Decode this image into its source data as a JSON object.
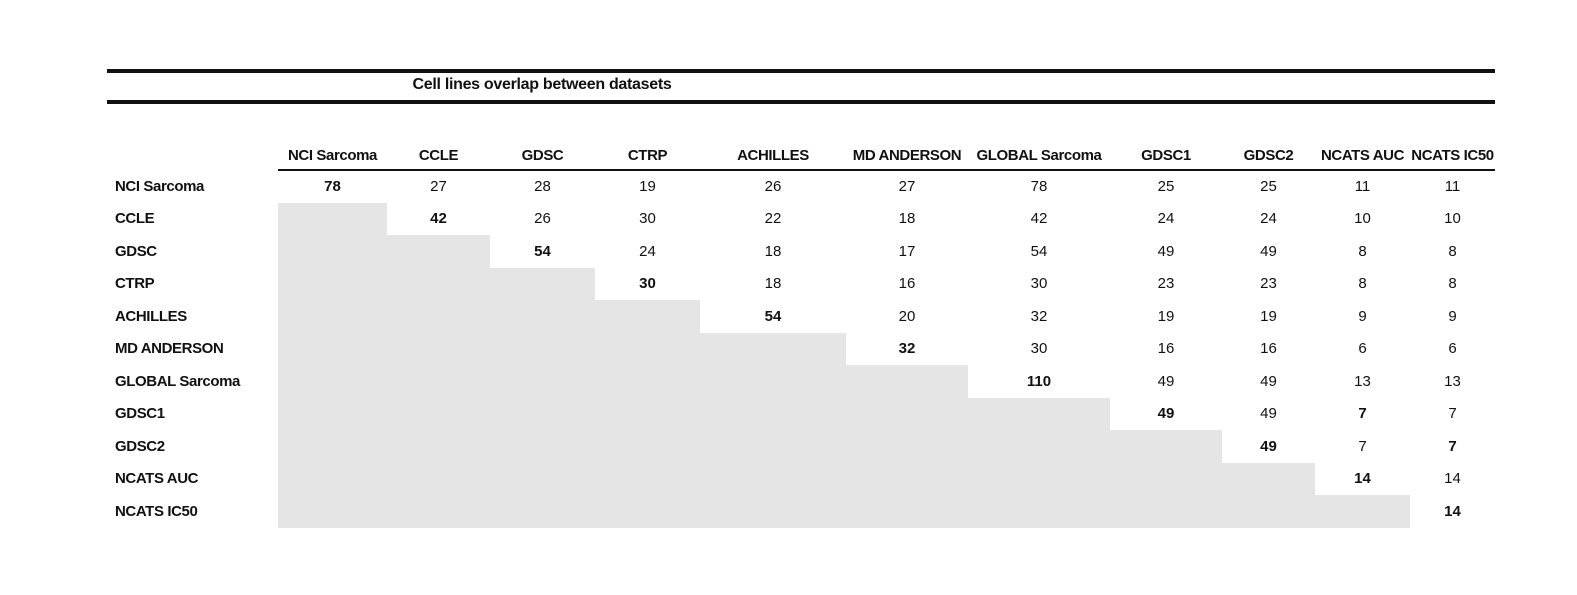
{
  "title": "Cell lines overlap between datasets",
  "colors": {
    "empty_cell_shade": "#e5e5e5",
    "text": "#111111",
    "rule": "#111111",
    "background": "#ffffff"
  },
  "table": {
    "corner_label": "",
    "columns": [
      "NCI Sarcoma",
      "CCLE",
      "GDSC",
      "CTRP",
      "ACHILLES",
      "MD ANDERSON",
      "GLOBAL Sarcoma",
      "GDSC1",
      "GDSC2",
      "NCATS AUC",
      "NCATS IC50"
    ],
    "rows": [
      {
        "label": "NCI Sarcoma",
        "values": [
          78,
          27,
          28,
          19,
          26,
          27,
          78,
          25,
          25,
          11,
          11
        ]
      },
      {
        "label": "CCLE",
        "values": [
          null,
          42,
          26,
          30,
          22,
          18,
          42,
          24,
          24,
          10,
          10
        ]
      },
      {
        "label": "GDSC",
        "values": [
          null,
          null,
          54,
          24,
          18,
          17,
          54,
          49,
          49,
          8,
          8
        ]
      },
      {
        "label": "CTRP",
        "values": [
          null,
          null,
          null,
          30,
          18,
          16,
          30,
          23,
          23,
          8,
          8
        ]
      },
      {
        "label": "ACHILLES",
        "values": [
          null,
          null,
          null,
          null,
          54,
          20,
          32,
          19,
          19,
          9,
          9
        ]
      },
      {
        "label": "MD ANDERSON",
        "values": [
          null,
          null,
          null,
          null,
          null,
          32,
          30,
          16,
          16,
          6,
          6
        ]
      },
      {
        "label": "GLOBAL Sarcoma",
        "values": [
          null,
          null,
          null,
          null,
          null,
          null,
          110,
          49,
          49,
          13,
          13
        ]
      },
      {
        "label": "GDSC1",
        "values": [
          null,
          null,
          null,
          null,
          null,
          null,
          null,
          49,
          49,
          7,
          7
        ]
      },
      {
        "label": "GDSC2",
        "values": [
          null,
          null,
          null,
          null,
          null,
          null,
          null,
          null,
          49,
          7,
          7
        ]
      },
      {
        "label": "NCATS AUC",
        "values": [
          null,
          null,
          null,
          null,
          null,
          null,
          null,
          null,
          null,
          14,
          14
        ]
      },
      {
        "label": "NCATS IC50",
        "values": [
          null,
          null,
          null,
          null,
          null,
          null,
          null,
          null,
          null,
          null,
          14
        ]
      }
    ],
    "bold_cells": [
      [
        0,
        0
      ],
      [
        1,
        1
      ],
      [
        2,
        2
      ],
      [
        3,
        3
      ],
      [
        4,
        4
      ],
      [
        5,
        5
      ],
      [
        6,
        6
      ],
      [
        7,
        7
      ],
      [
        8,
        8
      ],
      [
        9,
        9
      ],
      [
        10,
        10
      ],
      [
        7,
        9
      ],
      [
        8,
        10
      ]
    ]
  },
  "chart_data": {
    "type": "table",
    "title": "Cell lines overlap between datasets",
    "col_labels": [
      "NCI Sarcoma",
      "CCLE",
      "GDSC",
      "CTRP",
      "ACHILLES",
      "MD ANDERSON",
      "GLOBAL Sarcoma",
      "GDSC1",
      "GDSC2",
      "NCATS AUC",
      "NCATS IC50"
    ],
    "row_labels": [
      "NCI Sarcoma",
      "CCLE",
      "GDSC",
      "CTRP",
      "ACHILLES",
      "MD ANDERSON",
      "GLOBAL Sarcoma",
      "GDSC1",
      "GDSC2",
      "NCATS AUC",
      "NCATS IC50"
    ],
    "matrix": [
      [
        78,
        27,
        28,
        19,
        26,
        27,
        78,
        25,
        25,
        11,
        11
      ],
      [
        null,
        42,
        26,
        30,
        22,
        18,
        42,
        24,
        24,
        10,
        10
      ],
      [
        null,
        null,
        54,
        24,
        18,
        17,
        54,
        49,
        49,
        8,
        8
      ],
      [
        null,
        null,
        null,
        30,
        18,
        16,
        30,
        23,
        23,
        8,
        8
      ],
      [
        null,
        null,
        null,
        null,
        54,
        20,
        32,
        19,
        19,
        9,
        9
      ],
      [
        null,
        null,
        null,
        null,
        null,
        32,
        30,
        16,
        16,
        6,
        6
      ],
      [
        null,
        null,
        null,
        null,
        null,
        null,
        110,
        49,
        49,
        13,
        13
      ],
      [
        null,
        null,
        null,
        null,
        null,
        null,
        null,
        49,
        49,
        7,
        7
      ],
      [
        null,
        null,
        null,
        null,
        null,
        null,
        null,
        null,
        49,
        7,
        7
      ],
      [
        null,
        null,
        null,
        null,
        null,
        null,
        null,
        null,
        null,
        14,
        14
      ],
      [
        null,
        null,
        null,
        null,
        null,
        null,
        null,
        null,
        null,
        null,
        14
      ]
    ],
    "layout_hints": "upper-triangle matrix; lower triangle shaded gray; diagonal values bold"
  }
}
